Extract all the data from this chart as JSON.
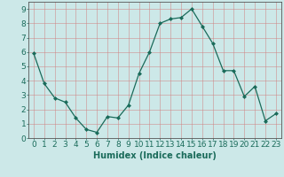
{
  "x": [
    0,
    1,
    2,
    3,
    4,
    5,
    6,
    7,
    8,
    9,
    10,
    11,
    12,
    13,
    14,
    15,
    16,
    17,
    18,
    19,
    20,
    21,
    22,
    23
  ],
  "y": [
    5.9,
    3.8,
    2.8,
    2.5,
    1.4,
    0.6,
    0.4,
    1.5,
    1.4,
    2.3,
    4.5,
    6.0,
    8.0,
    8.3,
    8.4,
    9.0,
    7.8,
    6.6,
    4.7,
    4.7,
    2.9,
    3.6,
    1.2,
    1.7
  ],
  "line_color": "#1a6b5a",
  "marker": "D",
  "marker_size": 2.0,
  "linewidth": 0.9,
  "bg_color": "#cce8e8",
  "grid_color": "#d08080",
  "xlabel": "Humidex (Indice chaleur)",
  "xlabel_fontsize": 7,
  "xlabel_color": "#1a6b5a",
  "xlabel_fontweight": "bold",
  "xlim": [
    -0.5,
    23.5
  ],
  "ylim": [
    0,
    9.5
  ],
  "xtick_labels": [
    "0",
    "1",
    "2",
    "3",
    "4",
    "5",
    "6",
    "7",
    "8",
    "9",
    "10",
    "11",
    "12",
    "13",
    "14",
    "15",
    "16",
    "17",
    "18",
    "19",
    "20",
    "21",
    "22",
    "23"
  ],
  "ytick_vals": [
    0,
    1,
    2,
    3,
    4,
    5,
    6,
    7,
    8,
    9
  ],
  "tick_fontsize": 6.5,
  "tick_color": "#1a6b5a",
  "spine_color": "#555555"
}
